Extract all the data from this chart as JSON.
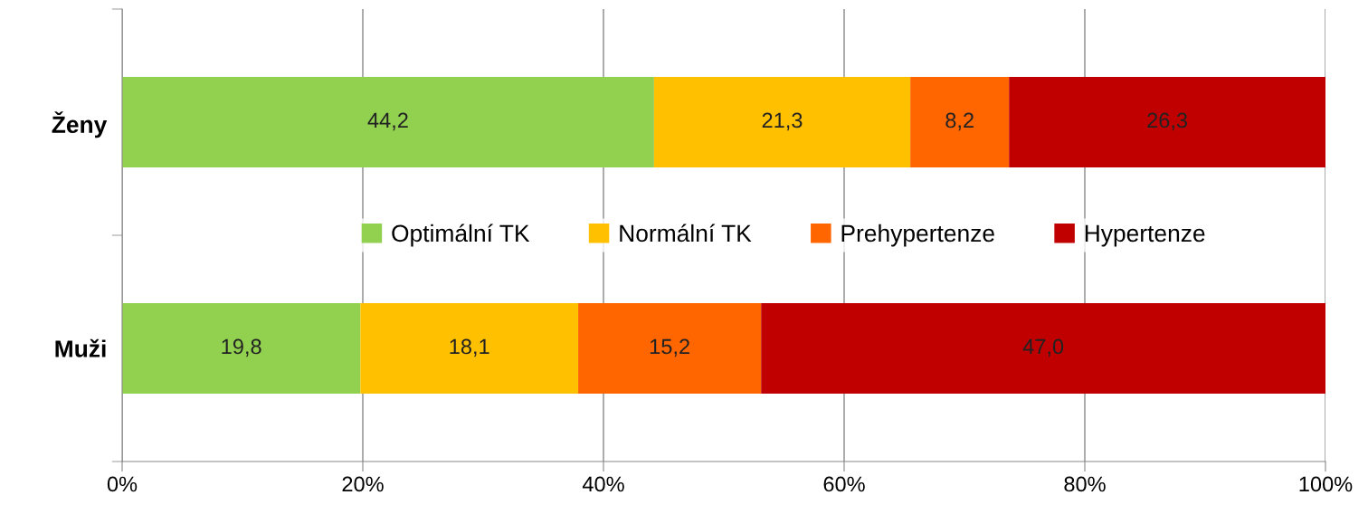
{
  "chart_data": {
    "type": "bar",
    "orientation": "horizontal",
    "stacked": true,
    "categories": [
      "Ženy",
      "Muži"
    ],
    "series": [
      {
        "name": "Optimální TK",
        "color": "#92d050",
        "values": [
          44.2,
          19.8
        ],
        "value_labels": [
          "44,2",
          "19,8"
        ]
      },
      {
        "name": "Normální TK",
        "color": "#ffc000",
        "values": [
          21.3,
          18.1
        ],
        "value_labels": [
          "21,3",
          "18,1"
        ]
      },
      {
        "name": "Prehypertenze",
        "color": "#ff6600",
        "values": [
          8.2,
          15.2
        ],
        "value_labels": [
          "8,2",
          "15,2"
        ]
      },
      {
        "name": "Hypertenze",
        "color": "#c00000",
        "values": [
          26.3,
          47.0
        ],
        "value_labels": [
          "26,3",
          "47,0"
        ]
      }
    ],
    "xlim": [
      0,
      100
    ],
    "xticks": [
      {
        "value": 0,
        "label": "0%"
      },
      {
        "value": 20,
        "label": "20%"
      },
      {
        "value": 40,
        "label": "40%"
      },
      {
        "value": 60,
        "label": "60%"
      },
      {
        "value": 80,
        "label": "80%"
      },
      {
        "value": 100,
        "label": "100%"
      }
    ],
    "grid": "x",
    "legend": "center"
  }
}
